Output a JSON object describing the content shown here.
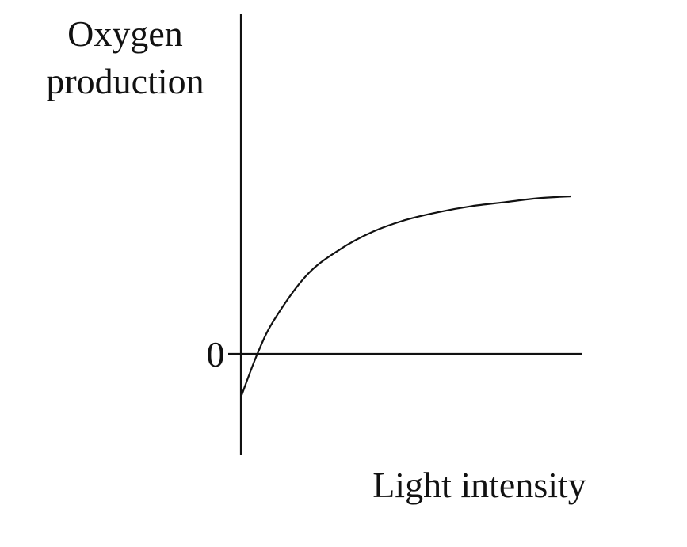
{
  "chart_data": {
    "type": "line",
    "title": "",
    "ylabel_lines": [
      "Oxygen",
      "production"
    ],
    "xlabel": "Light intensity",
    "y_tick_labels": [
      "0"
    ],
    "series": [
      {
        "x": [
          0,
          0.05,
          0.1,
          0.2,
          0.3,
          0.4,
          0.5,
          0.6,
          0.7,
          0.8,
          0.9,
          1.0
        ],
        "y": [
          -0.22,
          0.0,
          0.17,
          0.4,
          0.53,
          0.62,
          0.68,
          0.72,
          0.75,
          0.77,
          0.79,
          0.8
        ]
      }
    ],
    "xlim": [
      0,
      1.0
    ],
    "ylim": [
      -0.3,
      1.0
    ],
    "grid": false,
    "legend": "none"
  }
}
